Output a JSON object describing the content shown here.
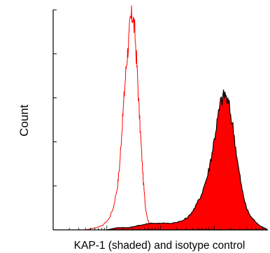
{
  "chart_data": {
    "type": "area",
    "title": "",
    "xlabel": "KAP-1 (shaded) and isotype control",
    "ylabel": "Count",
    "xscale": "log",
    "xlim": [
      0,
      1
    ],
    "ylim": [
      0,
      1
    ],
    "grid": false,
    "legend": "none",
    "series": [
      {
        "style": "red outline, unfilled",
        "color": "#ff0000",
        "x": [
          0.0,
          0.05,
          0.1,
          0.15,
          0.2,
          0.23,
          0.26,
          0.28,
          0.3,
          0.31,
          0.32,
          0.33,
          0.34,
          0.35,
          0.36,
          0.37,
          0.38,
          0.39,
          0.4,
          0.41,
          0.42,
          0.43,
          0.44,
          0.45,
          0.47,
          0.5,
          0.55,
          0.6
        ],
        "y": [
          0.0,
          0.0,
          0.0,
          0.0,
          0.01,
          0.02,
          0.05,
          0.1,
          0.2,
          0.3,
          0.45,
          0.6,
          0.74,
          0.84,
          0.95,
          0.98,
          0.9,
          0.75,
          0.55,
          0.38,
          0.22,
          0.1,
          0.05,
          0.02,
          0.01,
          0.0,
          0.0,
          0.0
        ]
      },
      {
        "style": "red filled with black outline",
        "color": "#ff0000",
        "edge_color": "#000000",
        "x": [
          0.25,
          0.3,
          0.35,
          0.4,
          0.45,
          0.5,
          0.55,
          0.6,
          0.63,
          0.66,
          0.69,
          0.72,
          0.74,
          0.76,
          0.78,
          0.8,
          0.82,
          0.84,
          0.86,
          0.88,
          0.9,
          0.92,
          0.94,
          0.96,
          0.98,
          1.0
        ],
        "y": [
          0.0,
          0.01,
          0.01,
          0.02,
          0.03,
          0.03,
          0.03,
          0.04,
          0.06,
          0.1,
          0.16,
          0.25,
          0.35,
          0.47,
          0.58,
          0.62,
          0.56,
          0.45,
          0.3,
          0.18,
          0.1,
          0.06,
          0.04,
          0.02,
          0.01,
          0.0
        ]
      }
    ]
  }
}
